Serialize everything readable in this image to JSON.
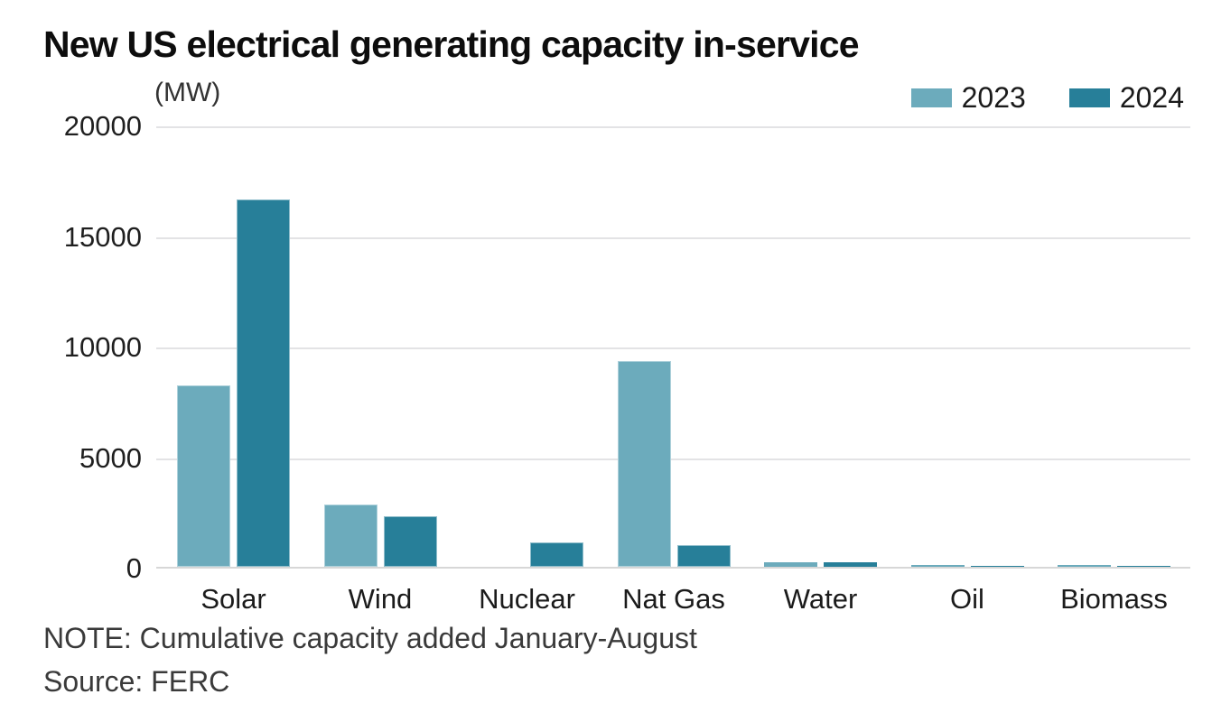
{
  "title": "New US electrical generating capacity in-service",
  "unit_label": "(MW)",
  "note": "NOTE: Cumulative capacity added January-August",
  "source": "Source: FERC",
  "colors": {
    "series_2023": "#6cabbc",
    "series_2024": "#277f99",
    "gridline": "#e3e3e5",
    "axis_line": "#d7d7d7",
    "title_text": "#0d0d0d",
    "body_text": "#3a3a3a"
  },
  "chart_data": {
    "type": "bar",
    "title": "New US electrical generating capacity in-service",
    "ylabel": "(MW)",
    "categories": [
      "Solar",
      "Wind",
      "Nuclear",
      "Nat Gas",
      "Water",
      "Oil",
      "Biomass"
    ],
    "series": [
      {
        "name": "2023",
        "color": "#6cabbc",
        "values": [
          8200,
          2800,
          0,
          9300,
          200,
          80,
          75
        ]
      },
      {
        "name": "2024",
        "color": "#277f99",
        "values": [
          16600,
          2300,
          1100,
          1000,
          210,
          55,
          45
        ]
      }
    ],
    "ylim": [
      0,
      20000
    ],
    "yticks": [
      0,
      5000,
      10000,
      15000,
      20000
    ],
    "grid": true,
    "legend_position": "top-right",
    "note": "NOTE: Cumulative capacity added January-August",
    "source": "Source: FERC"
  }
}
